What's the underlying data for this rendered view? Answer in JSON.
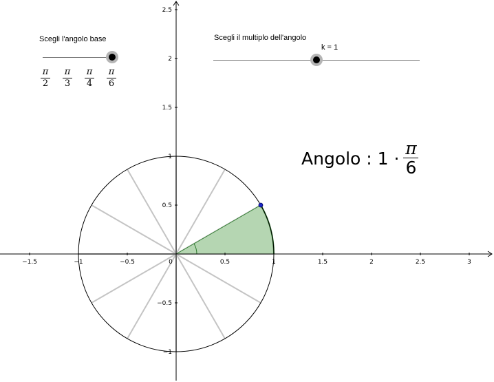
{
  "base_slider": {
    "label": "Scegli l'angolo base",
    "options": [
      {
        "num": "π",
        "den": "2"
      },
      {
        "num": "π",
        "den": "3"
      },
      {
        "num": "π",
        "den": "4"
      },
      {
        "num": "π",
        "den": "6"
      }
    ],
    "selected_index": 3
  },
  "multiple_slider": {
    "label": "Scegli il multiplo dell'angolo",
    "value_label": "k = 1",
    "value_fraction": 0.5
  },
  "angle_display": {
    "prefix": "Angolo : 1 ·",
    "num": "π",
    "den": "6"
  },
  "graph": {
    "x_ticks": [
      "−1.5",
      "−1",
      "−0.5",
      "0",
      "0.5",
      "1",
      "1.5",
      "2",
      "2.5",
      "3"
    ],
    "y_ticks": [
      "2.5",
      "2",
      "1.5",
      "1",
      "0.5",
      "−0.5",
      "−1"
    ],
    "x_tick_values": [
      -1.5,
      -1,
      -0.5,
      0,
      0.5,
      1,
      1.5,
      2,
      2.5,
      3
    ],
    "y_tick_values": [
      2.5,
      2,
      1.5,
      1,
      0.5,
      -0.5,
      -1
    ],
    "x_range": [
      -1.8,
      3.25
    ],
    "y_range": [
      -1.28,
      2.6
    ],
    "unit_circle_radius": 1,
    "spoke_angles_deg": [
      0,
      30,
      60,
      90,
      120,
      150,
      180,
      210,
      240,
      270,
      300,
      330
    ],
    "angle_deg": 30,
    "point": {
      "x": 0.866,
      "y": 0.5
    },
    "colors": {
      "sector_fill": "#b5d6b2",
      "sector_stroke": "#2f7a2f",
      "spokes": "#c4c4c4",
      "point": "#1b28c8",
      "axes": "#000000"
    }
  }
}
